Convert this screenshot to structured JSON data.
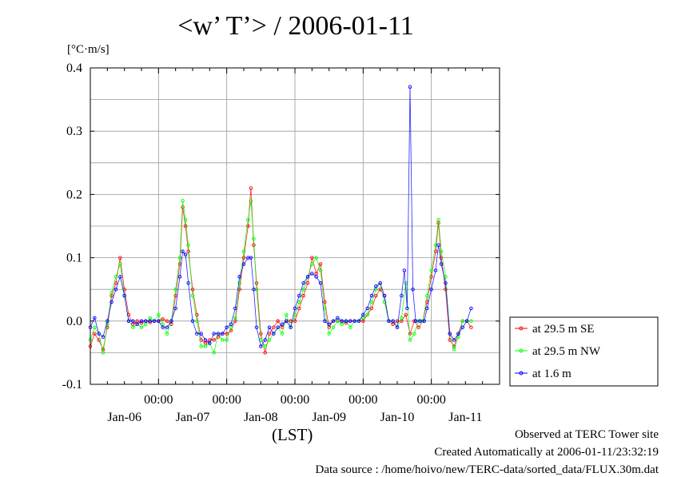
{
  "title": "<w’ T’> / 2006-01-11",
  "ylabel_unit": "[°C·m/s]",
  "xlabel": "(LST)",
  "credits": {
    "line1": "Observed at TERC Tower site",
    "line2": "Created Automatically at 2006-01-11/23:32:19",
    "line3": "Data source : /home/hoivo/new/TERC-data/sorted_data/FLUX.30m.dat"
  },
  "chart_data": {
    "type": "line",
    "x_unit": "hours since 2006-01-05 00:00 LST",
    "xlim": [
      0,
      144
    ],
    "ylim": [
      -0.1,
      0.4
    ],
    "y_ticks": [
      -0.1,
      0.0,
      0.1,
      0.2,
      0.3,
      0.4
    ],
    "y_tick_labels": [
      "-0.1",
      "0.0",
      "0.1",
      "0.2",
      "0.3",
      "0.4"
    ],
    "x_ticks": [
      24,
      48,
      72,
      96,
      120
    ],
    "x_tick_labels": [
      "00:00",
      "00:00",
      "00:00",
      "00:00",
      "00:00"
    ],
    "date_labels": [
      {
        "x": 12,
        "label": "Jan-06"
      },
      {
        "x": 36,
        "label": "Jan-07"
      },
      {
        "x": 60,
        "label": "Jan-08"
      },
      {
        "x": 84,
        "label": "Jan-09"
      },
      {
        "x": 108,
        "label": "Jan-10"
      },
      {
        "x": 132,
        "label": "Jan-11"
      }
    ],
    "grid": true,
    "legend_position": "right",
    "series": [
      {
        "name": "at 29.5 m SE",
        "color": "#ff0000",
        "points": [
          [
            0,
            -0.04
          ],
          [
            1.5,
            -0.02
          ],
          [
            3,
            -0.03
          ],
          [
            4.5,
            -0.045
          ],
          [
            6,
            -0.01
          ],
          [
            7.5,
            0.04
          ],
          [
            9,
            0.06
          ],
          [
            10.5,
            0.1
          ],
          [
            12,
            0.05
          ],
          [
            13.5,
            0.01
          ],
          [
            15,
            -0.005
          ],
          [
            16.5,
            0.0
          ],
          [
            18,
            -0.003
          ],
          [
            19.5,
            0.0
          ],
          [
            21,
            -0.002
          ],
          [
            22.5,
            0.0
          ],
          [
            24,
            0.0
          ],
          [
            25.5,
            0.003
          ],
          [
            27,
            0.0
          ],
          [
            28.5,
            -0.005
          ],
          [
            30,
            0.04
          ],
          [
            31.5,
            0.09
          ],
          [
            32.5,
            0.18
          ],
          [
            33.5,
            0.15
          ],
          [
            34.5,
            0.11
          ],
          [
            36,
            0.05
          ],
          [
            37.5,
            0.01
          ],
          [
            39,
            -0.03
          ],
          [
            40.5,
            -0.035
          ],
          [
            42,
            -0.03
          ],
          [
            43.5,
            -0.03
          ],
          [
            45,
            -0.025
          ],
          [
            46.5,
            -0.02
          ],
          [
            48,
            -0.02
          ],
          [
            49.5,
            -0.015
          ],
          [
            51,
            0.0
          ],
          [
            52.5,
            0.05
          ],
          [
            54,
            0.1
          ],
          [
            55.5,
            0.15
          ],
          [
            56.5,
            0.21
          ],
          [
            57.5,
            0.12
          ],
          [
            58.5,
            0.06
          ],
          [
            60,
            -0.02
          ],
          [
            61.5,
            -0.05
          ],
          [
            63,
            -0.02
          ],
          [
            64.5,
            -0.01
          ],
          [
            66,
            0.0
          ],
          [
            67.5,
            -0.01
          ],
          [
            69,
            0.0
          ],
          [
            70.5,
            0.0
          ],
          [
            72,
            0.0
          ],
          [
            73.5,
            0.02
          ],
          [
            75,
            0.04
          ],
          [
            76.5,
            0.06
          ],
          [
            78,
            0.1
          ],
          [
            79.5,
            0.075
          ],
          [
            81,
            0.09
          ],
          [
            82.5,
            0.03
          ],
          [
            84,
            -0.01
          ],
          [
            85.5,
            0.0
          ],
          [
            87,
            0.0
          ],
          [
            88.5,
            0.0
          ],
          [
            90,
            -0.003
          ],
          [
            91.5,
            0.0
          ],
          [
            93,
            0.0
          ],
          [
            94.5,
            0.0
          ],
          [
            96,
            0.0
          ],
          [
            97.5,
            0.01
          ],
          [
            99,
            0.02
          ],
          [
            100.5,
            0.04
          ],
          [
            102,
            0.05
          ],
          [
            103.5,
            0.04
          ],
          [
            105,
            0.0
          ],
          [
            106.5,
            -0.005
          ],
          [
            108,
            0.0
          ],
          [
            109.5,
            0.0
          ],
          [
            111,
            0.01
          ],
          [
            112.5,
            -0.02
          ],
          [
            114,
            0.0
          ],
          [
            115.5,
            -0.01
          ],
          [
            117,
            0.0
          ],
          [
            118.5,
            0.03
          ],
          [
            120,
            0.07
          ],
          [
            121.5,
            0.11
          ],
          [
            122.5,
            0.155
          ],
          [
            123.5,
            0.1
          ],
          [
            125,
            0.05
          ],
          [
            126.5,
            -0.03
          ],
          [
            128,
            -0.04
          ],
          [
            129.5,
            -0.02
          ],
          [
            131,
            0.0
          ],
          [
            132.5,
            0.0
          ],
          [
            134,
            -0.01
          ]
        ]
      },
      {
        "name": "at 29.5 m NW",
        "color": "#00ff00",
        "points": [
          [
            0,
            -0.03
          ],
          [
            1.5,
            -0.01
          ],
          [
            3,
            -0.02
          ],
          [
            4.5,
            -0.05
          ],
          [
            6,
            -0.005
          ],
          [
            7.5,
            0.045
          ],
          [
            9,
            0.07
          ],
          [
            10.5,
            0.09
          ],
          [
            12,
            0.04
          ],
          [
            13.5,
            0.0
          ],
          [
            15,
            -0.01
          ],
          [
            16.5,
            -0.005
          ],
          [
            18,
            -0.01
          ],
          [
            19.5,
            -0.005
          ],
          [
            21,
            0.005
          ],
          [
            22.5,
            0.0
          ],
          [
            24,
            0.01
          ],
          [
            25.5,
            -0.005
          ],
          [
            27,
            -0.02
          ],
          [
            28.5,
            0.0
          ],
          [
            30,
            0.05
          ],
          [
            31.5,
            0.1
          ],
          [
            32.5,
            0.19
          ],
          [
            33.5,
            0.16
          ],
          [
            34.5,
            0.12
          ],
          [
            36,
            0.04
          ],
          [
            37.5,
            0.0
          ],
          [
            39,
            -0.04
          ],
          [
            40.5,
            -0.04
          ],
          [
            42,
            -0.035
          ],
          [
            43.5,
            -0.05
          ],
          [
            45,
            -0.02
          ],
          [
            46.5,
            -0.03
          ],
          [
            48,
            -0.03
          ],
          [
            49.5,
            -0.01
          ],
          [
            51,
            0.005
          ],
          [
            52.5,
            0.06
          ],
          [
            54,
            0.11
          ],
          [
            55.5,
            0.16
          ],
          [
            56.5,
            0.19
          ],
          [
            57.5,
            0.13
          ],
          [
            58.5,
            0.05
          ],
          [
            60,
            -0.03
          ],
          [
            61.5,
            -0.04
          ],
          [
            63,
            -0.03
          ],
          [
            64.5,
            -0.02
          ],
          [
            66,
            -0.01
          ],
          [
            67.5,
            -0.02
          ],
          [
            69,
            0.01
          ],
          [
            70.5,
            -0.01
          ],
          [
            72,
            0.01
          ],
          [
            73.5,
            0.03
          ],
          [
            75,
            0.05
          ],
          [
            76.5,
            0.07
          ],
          [
            78,
            0.09
          ],
          [
            79.5,
            0.1
          ],
          [
            81,
            0.08
          ],
          [
            82.5,
            0.02
          ],
          [
            84,
            -0.02
          ],
          [
            85.5,
            -0.01
          ],
          [
            87,
            0.0
          ],
          [
            88.5,
            -0.005
          ],
          [
            90,
            0.0
          ],
          [
            91.5,
            -0.01
          ],
          [
            93,
            0.0
          ],
          [
            94.5,
            0.0
          ],
          [
            96,
            0.005
          ],
          [
            97.5,
            0.01
          ],
          [
            99,
            0.03
          ],
          [
            100.5,
            0.05
          ],
          [
            102,
            0.06
          ],
          [
            103.5,
            0.03
          ],
          [
            105,
            0.0
          ],
          [
            106.5,
            0.0
          ],
          [
            108,
            -0.01
          ],
          [
            109.5,
            0.005
          ],
          [
            111,
            0.06
          ],
          [
            112.5,
            -0.03
          ],
          [
            114,
            -0.02
          ],
          [
            115.5,
            0.0
          ],
          [
            117,
            0.0
          ],
          [
            118.5,
            0.04
          ],
          [
            120,
            0.08
          ],
          [
            121.5,
            0.12
          ],
          [
            122.5,
            0.16
          ],
          [
            123.5,
            0.11
          ],
          [
            125,
            0.07
          ],
          [
            126.5,
            -0.02
          ],
          [
            128,
            -0.045
          ],
          [
            129.5,
            -0.025
          ],
          [
            131,
            0.0
          ],
          [
            132.5,
            0.0
          ],
          [
            134,
            0.0
          ]
        ]
      },
      {
        "name": "at 1.6 m",
        "color": "#0000ff",
        "points": [
          [
            0,
            -0.01
          ],
          [
            1.5,
            0.005
          ],
          [
            3,
            -0.02
          ],
          [
            4.5,
            -0.025
          ],
          [
            6,
            0.0
          ],
          [
            7.5,
            0.03
          ],
          [
            9,
            0.05
          ],
          [
            10.5,
            0.07
          ],
          [
            12,
            0.04
          ],
          [
            13.5,
            0.0
          ],
          [
            15,
            0.0
          ],
          [
            16.5,
            -0.005
          ],
          [
            18,
            0.0
          ],
          [
            19.5,
            0.0
          ],
          [
            21,
            0.0
          ],
          [
            22.5,
            0.0
          ],
          [
            24,
            0.0
          ],
          [
            25.5,
            -0.01
          ],
          [
            27,
            -0.01
          ],
          [
            28.5,
            0.0
          ],
          [
            30,
            0.02
          ],
          [
            31.5,
            0.07
          ],
          [
            32.5,
            0.11
          ],
          [
            33.5,
            0.105
          ],
          [
            34.5,
            0.06
          ],
          [
            36,
            0.0
          ],
          [
            37.5,
            -0.02
          ],
          [
            39,
            -0.02
          ],
          [
            40.5,
            -0.03
          ],
          [
            42,
            -0.035
          ],
          [
            43.5,
            -0.02
          ],
          [
            45,
            -0.02
          ],
          [
            46.5,
            -0.02
          ],
          [
            48,
            -0.01
          ],
          [
            49.5,
            -0.005
          ],
          [
            51,
            0.02
          ],
          [
            52.5,
            0.07
          ],
          [
            54,
            0.09
          ],
          [
            55.5,
            0.1
          ],
          [
            56.5,
            0.1
          ],
          [
            57.5,
            0.05
          ],
          [
            58.5,
            -0.01
          ],
          [
            60,
            -0.04
          ],
          [
            61.5,
            -0.03
          ],
          [
            63,
            -0.01
          ],
          [
            64.5,
            -0.02
          ],
          [
            66,
            -0.01
          ],
          [
            67.5,
            -0.005
          ],
          [
            69,
            0.0
          ],
          [
            70.5,
            -0.01
          ],
          [
            72,
            0.02
          ],
          [
            73.5,
            0.04
          ],
          [
            75,
            0.06
          ],
          [
            76.5,
            0.07
          ],
          [
            78,
            0.075
          ],
          [
            79.5,
            0.07
          ],
          [
            81,
            0.06
          ],
          [
            82.5,
            0.0
          ],
          [
            84,
            -0.005
          ],
          [
            85.5,
            0.0
          ],
          [
            87,
            0.005
          ],
          [
            88.5,
            0.0
          ],
          [
            90,
            0.0
          ],
          [
            91.5,
            0.0
          ],
          [
            93,
            0.0
          ],
          [
            94.5,
            0.0
          ],
          [
            96,
            0.01
          ],
          [
            97.5,
            0.02
          ],
          [
            99,
            0.04
          ],
          [
            100.5,
            0.055
          ],
          [
            102,
            0.06
          ],
          [
            103.5,
            0.04
          ],
          [
            105,
            0.0
          ],
          [
            106.5,
            0.0
          ],
          [
            108,
            -0.01
          ],
          [
            109.5,
            0.04
          ],
          [
            110.5,
            0.08
          ],
          [
            111.5,
            0.02
          ],
          [
            112.5,
            0.37
          ],
          [
            113.5,
            0.05
          ],
          [
            114.5,
            0.0
          ],
          [
            116,
            0.0
          ],
          [
            117.5,
            0.0
          ],
          [
            118.5,
            0.02
          ],
          [
            120,
            0.05
          ],
          [
            121.5,
            0.08
          ],
          [
            122.5,
            0.12
          ],
          [
            123.5,
            0.09
          ],
          [
            125,
            0.06
          ],
          [
            126.5,
            -0.02
          ],
          [
            128,
            -0.03
          ],
          [
            129.5,
            -0.02
          ],
          [
            131,
            -0.01
          ],
          [
            132.5,
            0.0
          ],
          [
            134,
            0.02
          ]
        ]
      }
    ]
  }
}
